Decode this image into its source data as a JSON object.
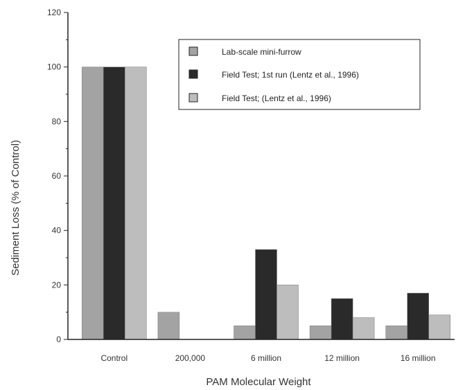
{
  "chart_data": {
    "type": "bar",
    "categories": [
      "Control",
      "200,000",
      "6 million",
      "12 million",
      "16 million"
    ],
    "series": [
      {
        "name": "Lab-scale mini-furrow",
        "values": [
          100,
          10,
          5,
          5,
          5
        ]
      },
      {
        "name": "Field Test; 1st run (Lentz et al., 1996)",
        "values": [
          100,
          null,
          33,
          15,
          17
        ]
      },
      {
        "name": "Field Test; (Lentz et al., 1996)",
        "values": [
          100,
          null,
          20,
          8,
          9
        ]
      }
    ],
    "xlabel": "PAM Molecular Weight",
    "ylabel": "Sediment Loss (% of Control)",
    "ylim": [
      0,
      120
    ],
    "yticks": [
      0,
      20,
      40,
      60,
      80,
      100,
      120
    ],
    "legend_position": "top-right",
    "grid": false
  },
  "colors": {
    "series": [
      "#a3a3a3",
      "#2a2a2a",
      "#bdbdbd"
    ],
    "axis": "#222222"
  }
}
